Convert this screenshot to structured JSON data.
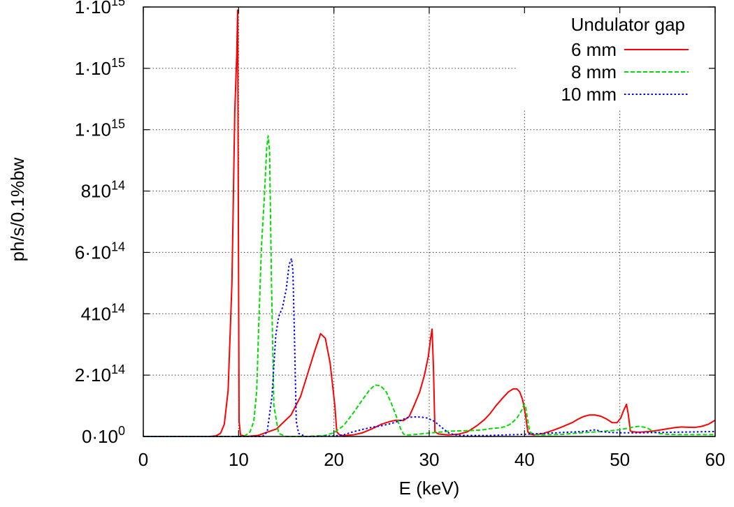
{
  "chart_data": {
    "type": "line",
    "xlabel": "E (keV)",
    "ylabel": "ph/s/0.1%bw",
    "xlim": [
      0,
      60
    ],
    "ylim": [
      0,
      1400000000000000.0
    ],
    "grid": true,
    "legend_position": "top-right",
    "legend_title": "Undulator gap",
    "x_ticks": [
      {
        "value": 0,
        "label": "0"
      },
      {
        "value": 10,
        "label": "10"
      },
      {
        "value": 20,
        "label": "20"
      },
      {
        "value": 30,
        "label": "30"
      },
      {
        "value": 40,
        "label": "40"
      },
      {
        "value": 50,
        "label": "50"
      },
      {
        "value": 60,
        "label": "60"
      }
    ],
    "y_ticks": [
      {
        "value": 0,
        "base": "0·10",
        "exp": "0"
      },
      {
        "value": 200000000000000.0,
        "base": "2·10",
        "exp": "14"
      },
      {
        "value": 400000000000000.0,
        "base": "410",
        "exp": "14"
      },
      {
        "value": 600000000000000.0,
        "base": "6·10",
        "exp": "14"
      },
      {
        "value": 800000000000000.0,
        "base": "810",
        "exp": "14"
      },
      {
        "value": 1000000000000000.0,
        "base": "1·10",
        "exp": "15"
      },
      {
        "value": 1200000000000000.0,
        "base": "1·10",
        "exp": "15"
      },
      {
        "value": 1400000000000000.0,
        "base": "1·10",
        "exp": "15"
      }
    ],
    "series": [
      {
        "name": "6 mm",
        "color": "#ff0000",
        "dash": "solid",
        "x": [
          0,
          7,
          7.6,
          8.1,
          8.5,
          8.9,
          9.3,
          9.6,
          9.8,
          9.9,
          10.05,
          10.2,
          10.8,
          12,
          14,
          15.5,
          16.5,
          17.3,
          18,
          18.6,
          19.1,
          19.6,
          20.1,
          20.3,
          20.6,
          21,
          22,
          23,
          24,
          25,
          25.8,
          26.5,
          27.3,
          27.9,
          28.4,
          29,
          29.5,
          29.9,
          30.15,
          30.3,
          30.45,
          30.6,
          31,
          32,
          33,
          34,
          35,
          35.8,
          36.4,
          37,
          37.7,
          38.3,
          38.8,
          39.2,
          39.5,
          39.8,
          40.1,
          40.35,
          40.6,
          41,
          42,
          43,
          44,
          45,
          45.6,
          46.2,
          46.8,
          47.4,
          48,
          48.6,
          49.2,
          49.7,
          50.1,
          50.4,
          50.7,
          50.9,
          51.1,
          51.4,
          52,
          53,
          54,
          55,
          55.8,
          56.5,
          57.2,
          58,
          58.6,
          59.3,
          60
        ],
        "y": [
          0,
          0,
          2000000000000.0,
          10000000000000.0,
          40000000000000.0,
          150000000000000.0,
          500000000000000.0,
          1060000000000000.0,
          1240000000000000.0,
          1390000000000000.0,
          50000000000000.0,
          5000000000000.0,
          0,
          3000000000000.0,
          25000000000000.0,
          70000000000000.0,
          130000000000000.0,
          210000000000000.0,
          280000000000000.0,
          335000000000000.0,
          320000000000000.0,
          240000000000000.0,
          100000000000000.0,
          15000000000000.0,
          5000000000000.0,
          3000000000000.0,
          5000000000000.0,
          12000000000000.0,
          25000000000000.0,
          40000000000000.0,
          48000000000000.0,
          53000000000000.0,
          52000000000000.0,
          65000000000000.0,
          100000000000000.0,
          145000000000000.0,
          200000000000000.0,
          260000000000000.0,
          320000000000000.0,
          350000000000000.0,
          220000000000000.0,
          15000000000000.0,
          8000000000000.0,
          5000000000000.0,
          7000000000000.0,
          15000000000000.0,
          35000000000000.0,
          55000000000000.0,
          75000000000000.0,
          100000000000000.0,
          125000000000000.0,
          145000000000000.0,
          155000000000000.0,
          155000000000000.0,
          145000000000000.0,
          120000000000000.0,
          70000000000000.0,
          15000000000000.0,
          8000000000000.0,
          5000000000000.0,
          10000000000000.0,
          20000000000000.0,
          32000000000000.0,
          45000000000000.0,
          56000000000000.0,
          65000000000000.0,
          70000000000000.0,
          70000000000000.0,
          66000000000000.0,
          57000000000000.0,
          45000000000000.0,
          45000000000000.0,
          60000000000000.0,
          85000000000000.0,
          105000000000000.0,
          70000000000000.0,
          18000000000000.0,
          15000000000000.0,
          14000000000000.0,
          16000000000000.0,
          20000000000000.0,
          25000000000000.0,
          29000000000000.0,
          31000000000000.0,
          30000000000000.0,
          30000000000000.0,
          33000000000000.0,
          40000000000000.0,
          53000000000000.0
        ]
      },
      {
        "name": "8 mm",
        "color": "#00dd00",
        "dash": "dashed",
        "x": [
          0,
          10.2,
          10.7,
          11.2,
          11.6,
          11.9,
          12.1,
          12.4,
          12.7,
          12.95,
          13.1,
          13.25,
          13.45,
          13.7,
          14.2,
          15,
          17,
          19,
          20,
          21,
          22,
          23,
          23.7,
          24.3,
          24.9,
          25.5,
          26,
          26.5,
          27,
          27.3,
          27.6,
          28,
          29,
          30,
          31,
          32,
          34,
          35.5,
          36.5,
          37.3,
          38,
          38.6,
          39.2,
          39.7,
          39.95,
          40.1,
          40.3,
          40.55,
          41,
          42,
          44,
          46,
          48,
          49.5,
          50.5,
          51.3,
          52,
          52.8,
          53.4,
          54,
          55,
          56,
          58,
          60
        ],
        "y": [
          0,
          0,
          3000000000000.0,
          15000000000000.0,
          50000000000000.0,
          150000000000000.0,
          350000000000000.0,
          620000000000000.0,
          780000000000000.0,
          940000000000000.0,
          980000000000000.0,
          930000000000000.0,
          500000000000000.0,
          100000000000000.0,
          10000000000000.0,
          0,
          0,
          3000000000000.0,
          12000000000000.0,
          35000000000000.0,
          75000000000000.0,
          120000000000000.0,
          150000000000000.0,
          168000000000000.0,
          165000000000000.0,
          145000000000000.0,
          110000000000000.0,
          70000000000000.0,
          25000000000000.0,
          8000000000000.0,
          5000000000000.0,
          5000000000000.0,
          8000000000000.0,
          11000000000000.0,
          14000000000000.0,
          17000000000000.0,
          19000000000000.0,
          21000000000000.0,
          26000000000000.0,
          28000000000000.0,
          32000000000000.0,
          42000000000000.0,
          60000000000000.0,
          85000000000000.0,
          105000000000000.0,
          100000000000000.0,
          60000000000000.0,
          15000000000000.0,
          6000000000000.0,
          5000000000000.0,
          7000000000000.0,
          12000000000000.0,
          16000000000000.0,
          20000000000000.0,
          25000000000000.0,
          30000000000000.0,
          33000000000000.0,
          29000000000000.0,
          18000000000000.0,
          10000000000000.0,
          7000000000000.0,
          6000000000000.0,
          6000000000000.0,
          6000000000000.0
        ]
      },
      {
        "name": "10 mm",
        "color": "#0000ff",
        "dash": "dotted",
        "x": [
          0,
          12.5,
          13,
          13.5,
          13.9,
          14.2,
          14.6,
          15,
          15.3,
          15.55,
          15.7,
          15.85,
          16.05,
          16.3,
          17,
          18,
          20,
          21,
          22,
          23,
          24,
          25,
          26,
          26.8,
          27.6,
          28.3,
          29.2,
          29.8,
          30.5,
          31.3,
          32,
          32.5,
          33,
          34,
          36,
          38,
          40,
          42,
          44,
          46,
          47,
          47.5,
          48,
          49,
          50,
          52,
          54,
          56,
          58,
          60
        ],
        "y": [
          0,
          0,
          15000000000000.0,
          130000000000000.0,
          330000000000000.0,
          390000000000000.0,
          420000000000000.0,
          480000000000000.0,
          560000000000000.0,
          580000000000000.0,
          540000000000000.0,
          340000000000000.0,
          50000000000000.0,
          10000000000000.0,
          0,
          0,
          2000000000000.0,
          5000000000000.0,
          15000000000000.0,
          23000000000000.0,
          30000000000000.0,
          35000000000000.0,
          42000000000000.0,
          50000000000000.0,
          60000000000000.0,
          64000000000000.0,
          63000000000000.0,
          60000000000000.0,
          50000000000000.0,
          30000000000000.0,
          12000000000000.0,
          7000000000000.0,
          4000000000000.0,
          3000000000000.0,
          3000000000000.0,
          5000000000000.0,
          7000000000000.0,
          10000000000000.0,
          13000000000000.0,
          16000000000000.0,
          20000000000000.0,
          22000000000000.0,
          16000000000000.0,
          13000000000000.0,
          12000000000000.0,
          12000000000000.0,
          13000000000000.0,
          14000000000000.0,
          15000000000000.0,
          16000000000000.0
        ]
      }
    ]
  }
}
